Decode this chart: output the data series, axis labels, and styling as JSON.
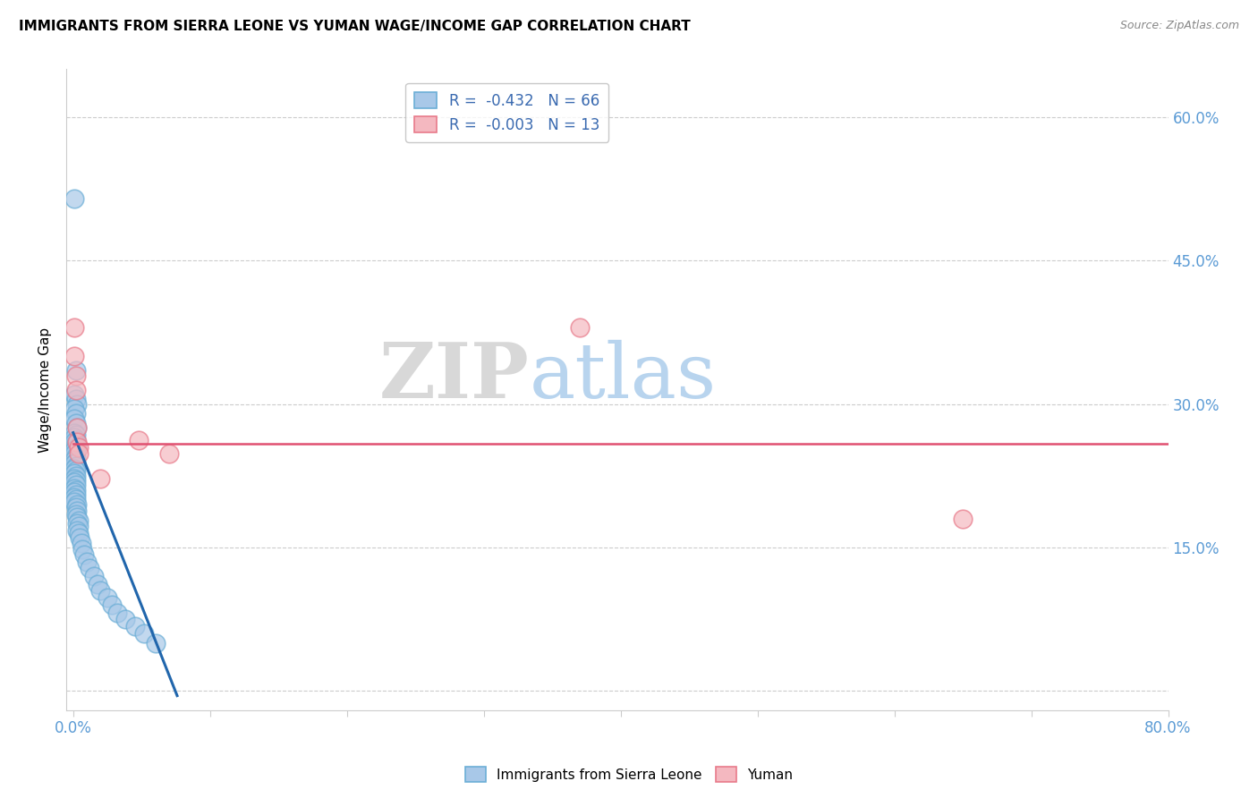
{
  "title": "IMMIGRANTS FROM SIERRA LEONE VS YUMAN WAGE/INCOME GAP CORRELATION CHART",
  "source": "Source: ZipAtlas.com",
  "ylabel": "Wage/Income Gap",
  "xlim": [
    -0.005,
    0.8
  ],
  "ylim": [
    -0.02,
    0.65
  ],
  "xticks": [
    0.0,
    0.1,
    0.2,
    0.3,
    0.4,
    0.5,
    0.6,
    0.7,
    0.8
  ],
  "xticklabels": [
    "0.0%",
    "",
    "",
    "",
    "",
    "",
    "",
    "",
    "80.0%"
  ],
  "yticks": [
    0.0,
    0.15,
    0.3,
    0.45,
    0.6
  ],
  "right_yticklabels": [
    "",
    "15.0%",
    "30.0%",
    "45.0%",
    "60.0%"
  ],
  "legend_r1": "R =  -0.432",
  "legend_n1": "N = 66",
  "legend_r2": "R =  -0.003",
  "legend_n2": "N = 13",
  "blue_color": "#a8c8e8",
  "blue_edge_color": "#6baed6",
  "pink_color": "#f4b8c0",
  "pink_edge_color": "#e87a8a",
  "blue_line_color": "#2166ac",
  "pink_line_color": "#e05070",
  "watermark_zip": "ZIP",
  "watermark_atlas": "atlas",
  "blue_x": [
    0.001,
    0.002,
    0.001,
    0.002,
    0.003,
    0.001,
    0.002,
    0.001,
    0.002,
    0.003,
    0.001,
    0.002,
    0.001,
    0.002,
    0.001,
    0.002,
    0.003,
    0.001,
    0.002,
    0.001,
    0.002,
    0.001,
    0.002,
    0.001,
    0.002,
    0.001,
    0.002,
    0.001,
    0.002,
    0.001,
    0.002,
    0.001,
    0.002,
    0.001,
    0.002,
    0.001,
    0.002,
    0.001,
    0.002,
    0.001,
    0.003,
    0.002,
    0.003,
    0.002,
    0.003,
    0.004,
    0.003,
    0.004,
    0.003,
    0.004,
    0.005,
    0.006,
    0.007,
    0.008,
    0.01,
    0.012,
    0.015,
    0.018,
    0.02,
    0.025,
    0.028,
    0.032,
    0.038,
    0.045,
    0.052,
    0.06
  ],
  "blue_y": [
    0.515,
    0.335,
    0.31,
    0.305,
    0.3,
    0.295,
    0.29,
    0.285,
    0.28,
    0.275,
    0.27,
    0.268,
    0.265,
    0.262,
    0.26,
    0.258,
    0.255,
    0.252,
    0.25,
    0.248,
    0.245,
    0.242,
    0.24,
    0.238,
    0.235,
    0.232,
    0.23,
    0.228,
    0.225,
    0.222,
    0.22,
    0.218,
    0.215,
    0.212,
    0.21,
    0.208,
    0.205,
    0.202,
    0.2,
    0.198,
    0.195,
    0.192,
    0.188,
    0.185,
    0.182,
    0.178,
    0.175,
    0.172,
    0.168,
    0.165,
    0.16,
    0.155,
    0.148,
    0.142,
    0.135,
    0.128,
    0.12,
    0.112,
    0.105,
    0.098,
    0.09,
    0.082,
    0.075,
    0.068,
    0.06,
    0.05
  ],
  "pink_x": [
    0.001,
    0.001,
    0.002,
    0.002,
    0.003,
    0.003,
    0.004,
    0.004,
    0.02,
    0.048,
    0.07,
    0.37,
    0.65
  ],
  "pink_y": [
    0.38,
    0.35,
    0.33,
    0.315,
    0.275,
    0.26,
    0.255,
    0.248,
    0.222,
    0.262,
    0.248,
    0.38,
    0.18
  ],
  "blue_trend_x": [
    0.0,
    0.076
  ],
  "blue_trend_y": [
    0.27,
    -0.005
  ],
  "pink_trend_y": [
    0.258,
    0.258
  ],
  "pink_trend_x": [
    0.0,
    0.8
  ]
}
